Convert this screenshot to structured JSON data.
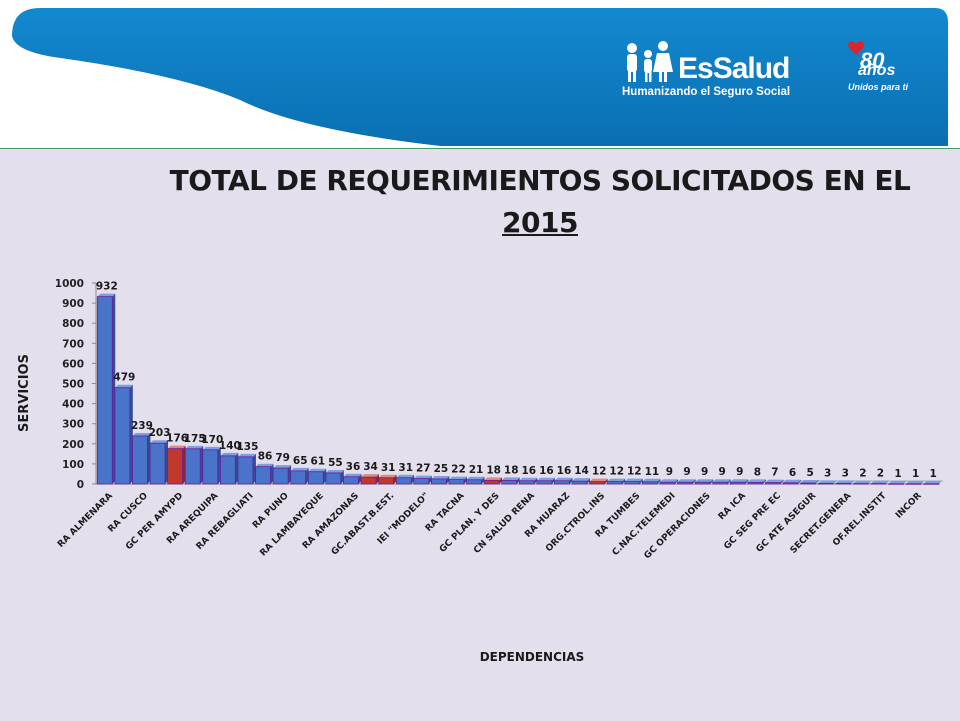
{
  "header": {
    "brand_name": "EsSalud",
    "brand_tagline": "Humanizando el Seguro Social",
    "anniversary_number": "80",
    "anniversary_years": "años",
    "anniversary_motto": "Unidos para ti"
  },
  "colors": {
    "header_blue": "#0b7bc1",
    "panel_background": "#e4dfec",
    "bar_blue": "#4a74c9",
    "bar_red": "#c0392b",
    "bar_outline": "#6a1b9a"
  },
  "chart_data": {
    "type": "bar",
    "title_line1": "TOTAL DE REQUERIMIENTOS SOLICITADOS EN EL",
    "title_line2": "2015",
    "xlabel": "DEPENDENCIAS",
    "ylabel": "SERVICIOS",
    "ylim": [
      0,
      1000
    ],
    "yticks": [
      0,
      100,
      200,
      300,
      400,
      500,
      600,
      700,
      800,
      900,
      1000
    ],
    "grid": false,
    "values": [
      932,
      479,
      239,
      203,
      176,
      175,
      170,
      140,
      135,
      86,
      79,
      65,
      61,
      55,
      36,
      34,
      31,
      31,
      27,
      25,
      22,
      21,
      18,
      18,
      16,
      16,
      16,
      14,
      12,
      12,
      12,
      11,
      9,
      9,
      9,
      9,
      9,
      8,
      7,
      6,
      5,
      3,
      3,
      2,
      2,
      1,
      1,
      1
    ],
    "highlighted_bars": [
      4,
      15,
      16,
      22,
      28
    ],
    "category_labels": [
      {
        "index": 0,
        "text": "RA ALMENARA"
      },
      {
        "index": 2,
        "text": "RA CUSCO"
      },
      {
        "index": 4,
        "text": "GC PER AMYPD"
      },
      {
        "index": 6,
        "text": "RA AREQUIPA"
      },
      {
        "index": 8,
        "text": "RA REBAGLIATI"
      },
      {
        "index": 10,
        "text": "RA PUNO"
      },
      {
        "index": 12,
        "text": "RA LAMBAYEQUE"
      },
      {
        "index": 14,
        "text": "RA AMAZONAS"
      },
      {
        "index": 16,
        "text": "GC.ABAST.B.EST."
      },
      {
        "index": 18,
        "text": "IEI \"MODELO\""
      },
      {
        "index": 20,
        "text": "RA TACNA"
      },
      {
        "index": 22,
        "text": "GC PLAN. Y DES"
      },
      {
        "index": 24,
        "text": "CN SALUD RENA"
      },
      {
        "index": 26,
        "text": "RA HUARAZ"
      },
      {
        "index": 28,
        "text": "ORG.CTROL.INS"
      },
      {
        "index": 30,
        "text": "RA TUMBES"
      },
      {
        "index": 32,
        "text": "C.NAC.TELEMEDI"
      },
      {
        "index": 34,
        "text": "GC OPERACIONES"
      },
      {
        "index": 36,
        "text": "RA ICA"
      },
      {
        "index": 38,
        "text": "GC SEG PRE EC"
      },
      {
        "index": 40,
        "text": "GC ATE ASEGUR"
      },
      {
        "index": 42,
        "text": "SECRET.GENERA"
      },
      {
        "index": 44,
        "text": "OF.REL.INSTIT"
      },
      {
        "index": 46,
        "text": "INCOR"
      }
    ]
  }
}
